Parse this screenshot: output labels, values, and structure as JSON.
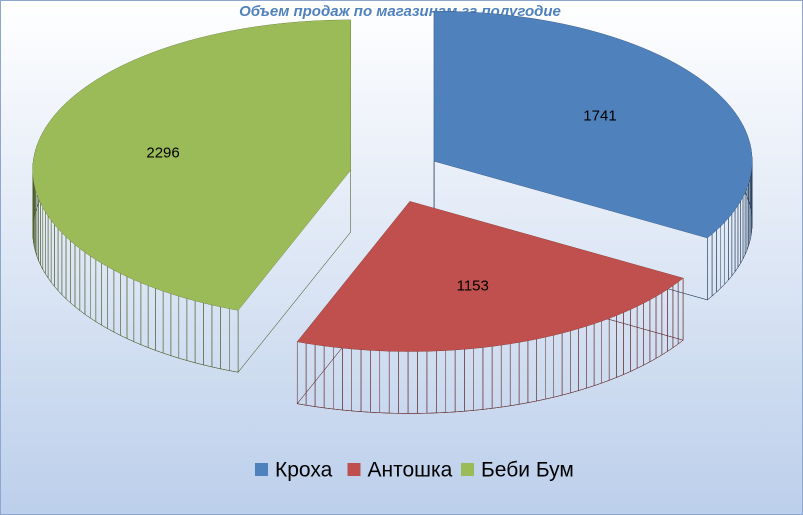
{
  "chart_data": {
    "type": "pie3d",
    "title": "Объем продаж по магазинам за полугодие",
    "categories": [
      "Кроха",
      "Антошка",
      "Беби Бум"
    ],
    "values": [
      1741,
      1153,
      2296
    ],
    "colors": [
      "#4f81bd",
      "#c0504d",
      "#9bbb59"
    ],
    "legend": "bottom"
  }
}
